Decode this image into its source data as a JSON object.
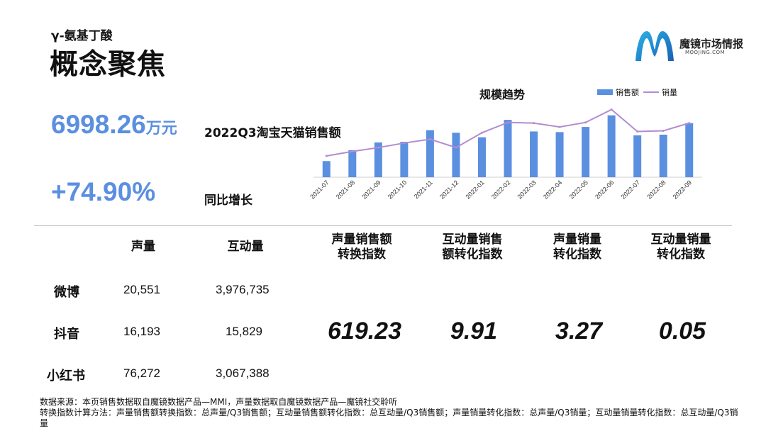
{
  "header": {
    "subtitle": "γ-氨基丁酸",
    "title": "概念聚焦"
  },
  "logo": {
    "name": "魔镜市场情报",
    "sub": "MOOJING.COM"
  },
  "kpis": {
    "sales_value": "6998.26",
    "sales_unit": "万元",
    "sales_label": "2022Q3淘宝天猫销售额",
    "growth_value": "+74.90%",
    "growth_label": "同比增长"
  },
  "colors": {
    "bar": "#5b8fe0",
    "line": "#b38bd1",
    "kpi": "#5b8fe0"
  },
  "chart_data": {
    "type": "bar",
    "title": "规模趋势",
    "legend_position": "top-right",
    "categories": [
      "2021-07",
      "2021-08",
      "2021-09",
      "2021-10",
      "2021-11",
      "2021-12",
      "2022-01",
      "2022-02",
      "2022-03",
      "2022-04",
      "2022-05",
      "2022-06",
      "2022-07",
      "2022-08",
      "2022-09"
    ],
    "series": [
      {
        "name": "销售额",
        "type": "bar",
        "values": [
          2.5,
          4.2,
          5.4,
          5.5,
          7.3,
          6.9,
          6.2,
          8.9,
          7.1,
          7.0,
          7.8,
          9.6,
          6.5,
          6.6,
          8.4
        ]
      },
      {
        "name": "销量",
        "type": "line",
        "values": [
          3.3,
          4.0,
          4.6,
          5.3,
          5.9,
          4.6,
          6.9,
          8.5,
          8.4,
          7.8,
          8.5,
          10.5,
          7.1,
          7.2,
          8.4
        ]
      }
    ],
    "ylim": [
      0,
      11
    ],
    "grid": false
  },
  "table": {
    "headers": [
      "声量",
      "互动量",
      "声量销售额\n转换指数",
      "互动量销售\n额转化指数",
      "声量销量\n转化指数",
      "互动量销量\n转化指数"
    ],
    "rows": [
      {
        "platform": "微博",
        "volume": "20,551",
        "interaction": "3,976,735"
      },
      {
        "platform": "抖音",
        "volume": "16,193",
        "interaction": "15,829"
      },
      {
        "platform": "小红书",
        "volume": "76,272",
        "interaction": "3,067,388"
      }
    ],
    "indices": [
      "619.23",
      "9.91",
      "3.27",
      "0.05"
    ]
  },
  "footnote": {
    "line1": "数据来源：本页销售数据取自魔镜数据产品—MMI，声量数据取自魔镜数据产品—魔镜社交聆听",
    "line2": "转换指数计算方法：声量销售额转换指数：总声量/Q3销售额；互动量销售额转化指数：总互动量/Q3销售额；声量销量转化指数：总声量/Q3销量；互动量销量转化指数：总互动量/Q3销量"
  }
}
